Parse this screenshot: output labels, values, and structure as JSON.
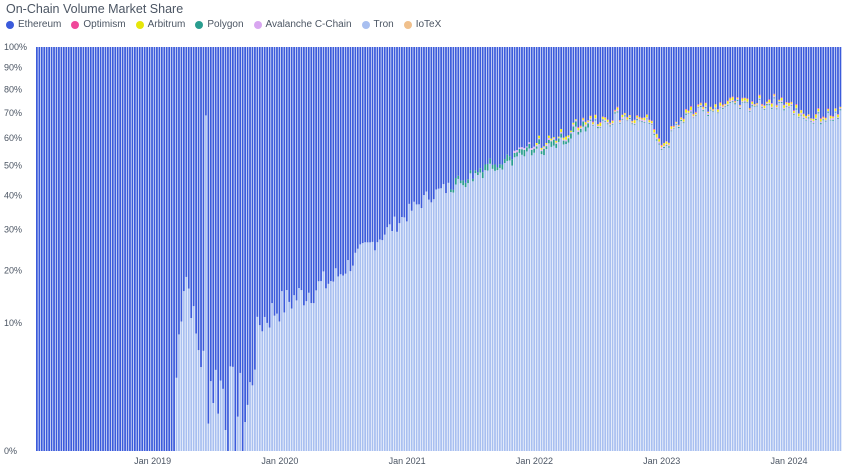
{
  "chart_data": {
    "type": "bar",
    "stacked": true,
    "title": "On-Chain Volume Market Share",
    "xlabel": "",
    "ylabel": "",
    "ylim": [
      0,
      100
    ],
    "y_scale": "sqrt",
    "y_ticks": [
      "0%",
      "10%",
      "20%",
      "30%",
      "40%",
      "50%",
      "60%",
      "70%",
      "80%",
      "90%",
      "100%"
    ],
    "x_ticks": [
      "Jan 2019",
      "Jan 2020",
      "Jan 2021",
      "Jan 2022",
      "Jan 2023",
      "Jan 2024"
    ],
    "x_range": [
      "2018-02",
      "2024-06"
    ],
    "legend_position": "top-left",
    "series": [
      {
        "name": "Ethereum",
        "color": "#3b5bdb"
      },
      {
        "name": "Optimism",
        "color": "#f0489a"
      },
      {
        "name": "Arbitrum",
        "color": "#e6e60a"
      },
      {
        "name": "Polygon",
        "color": "#2a9d8f"
      },
      {
        "name": "Avalanche C-Chain",
        "color": "#d8a6f0"
      },
      {
        "name": "Tron",
        "color": "#a8bff0"
      },
      {
        "name": "IoTeX",
        "color": "#f0c08c"
      }
    ],
    "tron_share_keyframes": [
      {
        "date": "2018-02",
        "value": 0
      },
      {
        "date": "2019-03",
        "value": 0
      },
      {
        "date": "2019-04",
        "value": 20
      },
      {
        "date": "2019-05",
        "value": 8
      },
      {
        "date": "2019-06",
        "value": 3
      },
      {
        "date": "2019-07",
        "value": 3
      },
      {
        "date": "2019-08",
        "value": 2
      },
      {
        "date": "2019-09",
        "value": 1
      },
      {
        "date": "2019-10",
        "value": 1
      },
      {
        "date": "2019-11",
        "value": 10
      },
      {
        "date": "2020-01",
        "value": 13
      },
      {
        "date": "2020-06",
        "value": 18
      },
      {
        "date": "2020-09",
        "value": 25
      },
      {
        "date": "2020-12",
        "value": 32
      },
      {
        "date": "2021-03",
        "value": 40
      },
      {
        "date": "2021-06",
        "value": 44
      },
      {
        "date": "2021-09",
        "value": 50
      },
      {
        "date": "2021-12",
        "value": 53
      },
      {
        "date": "2022-03",
        "value": 58
      },
      {
        "date": "2022-06",
        "value": 65
      },
      {
        "date": "2022-09",
        "value": 68
      },
      {
        "date": "2022-12",
        "value": 66
      },
      {
        "date": "2023-01",
        "value": 55
      },
      {
        "date": "2023-03",
        "value": 68
      },
      {
        "date": "2023-06",
        "value": 72
      },
      {
        "date": "2023-09",
        "value": 73
      },
      {
        "date": "2023-12",
        "value": 74
      },
      {
        "date": "2024-03",
        "value": 67
      },
      {
        "date": "2024-06",
        "value": 69
      }
    ],
    "spikes": [
      {
        "date": "2019-06",
        "series": "Tron",
        "value": 69
      }
    ]
  }
}
